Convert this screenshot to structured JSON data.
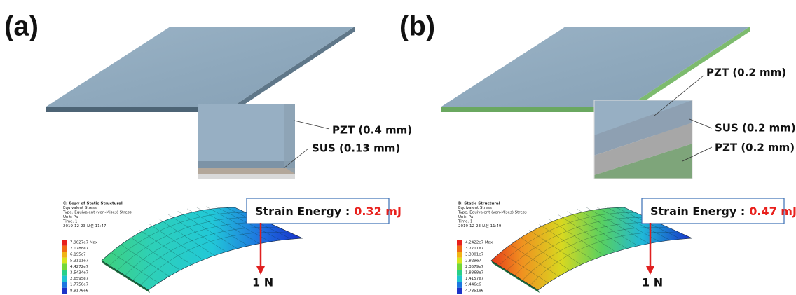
{
  "panels": [
    {
      "label": "(a)",
      "layers": [
        "PZT (0.4 mm)",
        "SUS (0.13 mm)"
      ],
      "strain_energy": {
        "label": "Strain Energy :",
        "value": "0.32 mJ"
      },
      "force": "1 N",
      "legend": {
        "title_lines": [
          "C: Copy of Static Structural",
          "Equivalent Stress",
          "Type: Equivalent (von-Mises) Stress",
          "Unit: Pa",
          "Time: 1",
          "2019-12-23 오전 11:47"
        ],
        "values": [
          "7.9627e7 Max",
          "7.0788e7",
          "6.195e7",
          "5.3111e7",
          "4.4272e7",
          "3.5434e7",
          "2.6595e7",
          "1.7756e7",
          "8.9176e6"
        ]
      }
    },
    {
      "label": "(b)",
      "layers": [
        "PZT (0.2 mm)",
        "SUS (0.2 mm)",
        "PZT (0.2 mm)"
      ],
      "strain_energy": {
        "label": "Strain Energy :",
        "value": "0.47 mJ"
      },
      "force": "1 N",
      "legend": {
        "title_lines": [
          "B: Static Structural",
          "Equivalent Stress",
          "Type: Equivalent (von-Mises) Stress",
          "Unit: Pa",
          "Time: 1",
          "2019-12-23 오전 11:49"
        ],
        "values": [
          "4.2422e7 Max",
          "3.7711e7",
          "3.3001e7",
          "2.829e7",
          "2.3579e7",
          "1.8868e7",
          "1.4157e7",
          "9.446e6",
          "4.7351e6"
        ]
      }
    }
  ]
}
